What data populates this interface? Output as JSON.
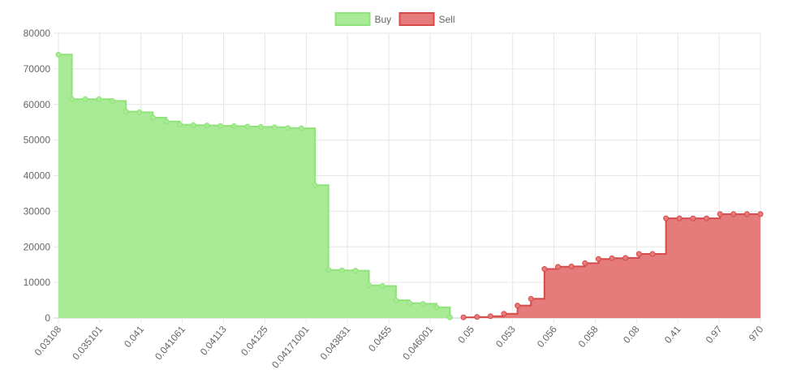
{
  "chart_data": {
    "type": "area",
    "title": "",
    "xlabel": "",
    "ylabel": "",
    "ylim": [
      0,
      80000
    ],
    "yticks": [
      0,
      10000,
      20000,
      30000,
      40000,
      50000,
      60000,
      70000,
      80000
    ],
    "grid": true,
    "legend_position": "top",
    "step": true,
    "x_tick_labels": [
      "0.03108",
      "0.035101",
      "0.041",
      "0.041061",
      "0.04113",
      "0.04125",
      "0.04171001",
      "0.043831",
      "0.0455",
      "0.046001",
      "0.05",
      "0.053",
      "0.056",
      "0.058",
      "0.08",
      "0.41",
      "0.97",
      "970"
    ],
    "series": [
      {
        "name": "Buy",
        "color": "#8fe37a",
        "fill": "#a8ea95",
        "values": [
          74000,
          61500,
          61500,
          61500,
          61000,
          58000,
          57800,
          56300,
          55200,
          54300,
          54200,
          54100,
          54000,
          53900,
          53800,
          53700,
          53600,
          53400,
          53300,
          37300,
          13500,
          13400,
          13300,
          9200,
          9000,
          5000,
          4200,
          4000,
          3000,
          200,
          null,
          null,
          null,
          null,
          null,
          null,
          null,
          null,
          null,
          null,
          null,
          null,
          null,
          null,
          null,
          null,
          null,
          null,
          null,
          null,
          null,
          null,
          null
        ]
      },
      {
        "name": "Sell",
        "color": "#d64a4a",
        "fill": "#e57b7b",
        "values": [
          null,
          null,
          null,
          null,
          null,
          null,
          null,
          null,
          null,
          null,
          null,
          null,
          null,
          null,
          null,
          null,
          null,
          null,
          null,
          null,
          null,
          null,
          null,
          null,
          null,
          null,
          null,
          null,
          null,
          null,
          200,
          300,
          500,
          1200,
          3500,
          5400,
          13800,
          14400,
          14500,
          15400,
          16600,
          16800,
          16900,
          18000,
          18000,
          28000,
          28000,
          28000,
          28000,
          29200,
          29200,
          29200,
          29200
        ]
      }
    ]
  }
}
